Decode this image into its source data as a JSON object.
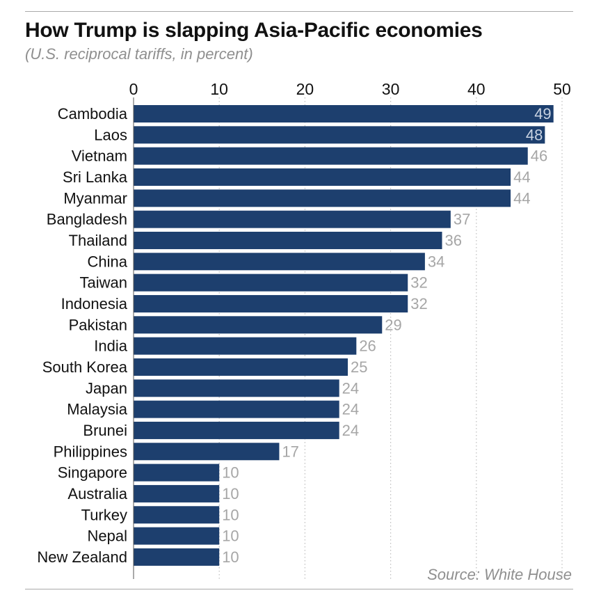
{
  "chart_data": {
    "type": "bar",
    "orientation": "horizontal",
    "title": "How Trump is slapping Asia-Pacific economies",
    "subtitle": "(U.S. reciprocal tariffs, in percent)",
    "source": "Source: White House",
    "categories": [
      "Cambodia",
      "Laos",
      "Vietnam",
      "Sri Lanka",
      "Myanmar",
      "Bangladesh",
      "Thailand",
      "China",
      "Taiwan",
      "Indonesia",
      "Pakistan",
      "India",
      "South Korea",
      "Japan",
      "Malaysia",
      "Brunei",
      "Philippines",
      "Singapore",
      "Australia",
      "Turkey",
      "Nepal",
      "New Zealand"
    ],
    "values": [
      49,
      48,
      46,
      44,
      44,
      37,
      36,
      34,
      32,
      32,
      29,
      26,
      25,
      24,
      24,
      24,
      17,
      10,
      10,
      10,
      10,
      10
    ],
    "xlim": [
      0,
      50
    ],
    "xticks": [
      0,
      10,
      20,
      30,
      40,
      50
    ],
    "xlabel": "",
    "ylabel": "",
    "grid": "vertical dotted",
    "colors": {
      "bar": "#1d3f6e",
      "value_label_outside": "#a6a6a6",
      "value_label_inside": "#c9d3e2",
      "grid": "#bdbdbd",
      "text": "#111111",
      "muted": "#8f8f8f"
    }
  }
}
